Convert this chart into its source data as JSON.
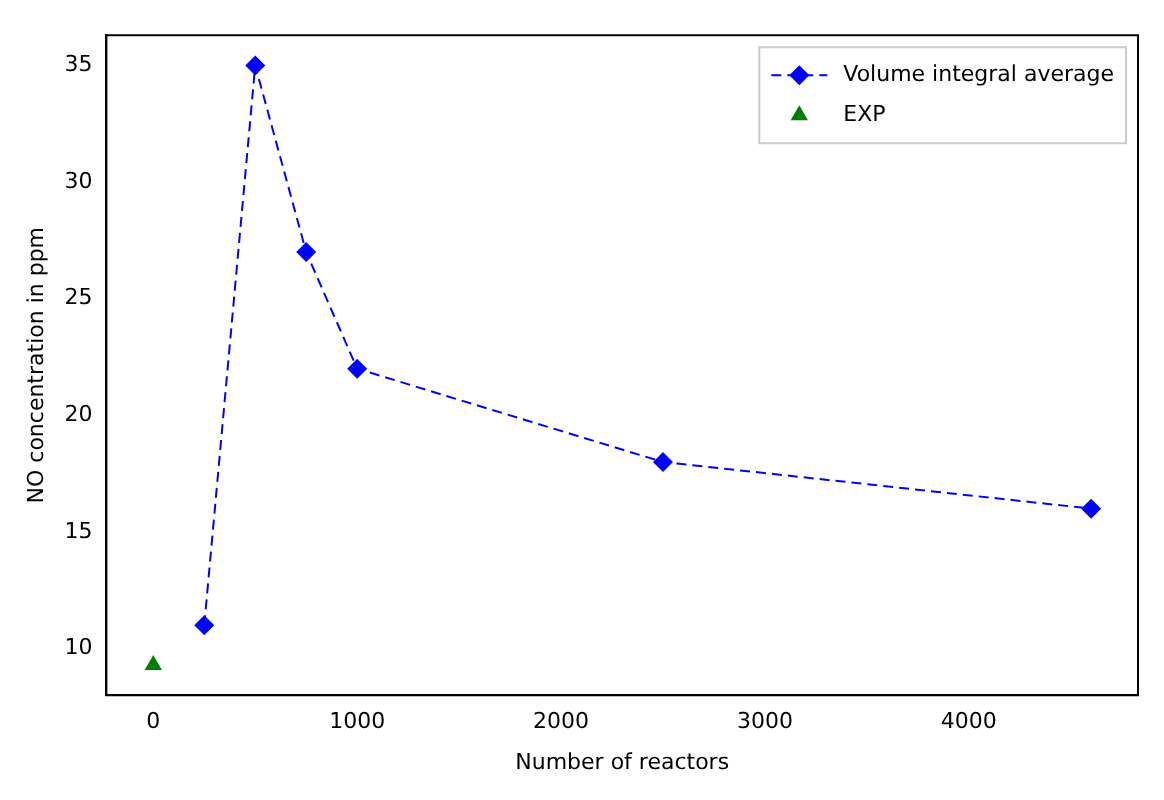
{
  "chart_data": {
    "type": "line",
    "xlabel": "Number of reactors",
    "ylabel": "NO concentration in ppm",
    "xlim": [
      -230,
      4830
    ],
    "xticks": [
      0,
      1000,
      2000,
      3000,
      4000
    ],
    "ylim": [
      8,
      36.3
    ],
    "yticks": [
      10,
      15,
      20,
      25,
      30,
      35
    ],
    "grid": false,
    "legend": "top right",
    "series": [
      {
        "name": "Volume integral average",
        "type": "line",
        "color": "#0000ff",
        "marker": "diamond",
        "line_style": "dashed",
        "x": [
          250,
          500,
          750,
          1000,
          2500,
          4600
        ],
        "values": [
          11,
          35,
          27,
          22,
          18,
          16
        ]
      },
      {
        "name": "EXP",
        "type": "scatter",
        "color": "#007f00",
        "marker": "triangle",
        "x": [
          0
        ],
        "values": [
          9.3
        ]
      }
    ]
  }
}
